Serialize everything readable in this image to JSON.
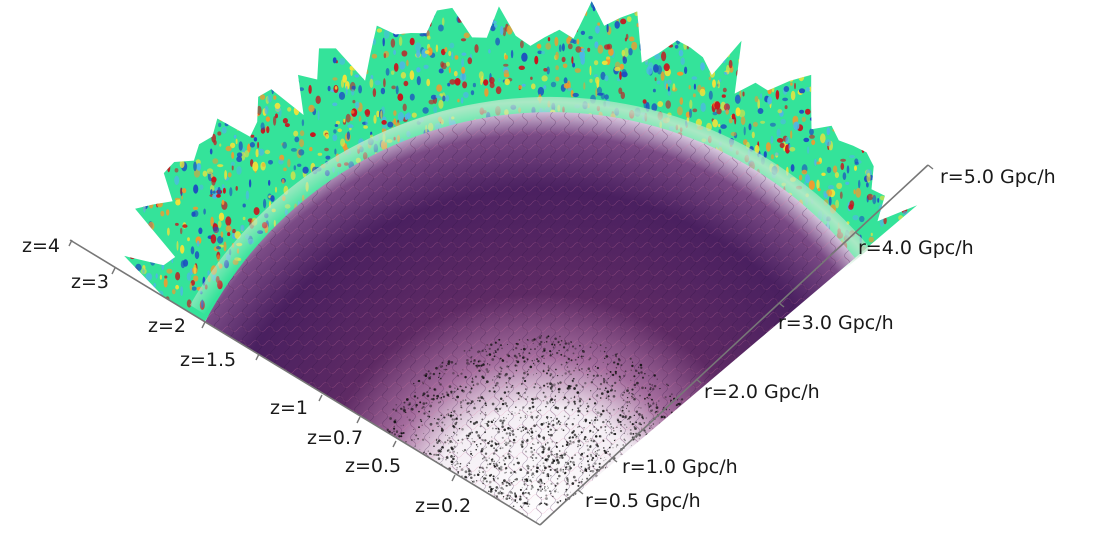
{
  "redshift_axis": {
    "labels": [
      "z=4",
      "z=3",
      "z=2",
      "z=1.5",
      "z=1",
      "z=0.7",
      "z=0.5",
      "z=0.2"
    ]
  },
  "distance_axis": {
    "labels": [
      "r=5.0 Gpc/h",
      "r=4.0 Gpc/h",
      "r=3.0 Gpc/h",
      "r=2.0 Gpc/h",
      "r=1.0 Gpc/h",
      "r=0.5 Gpc/h"
    ]
  },
  "colors": {
    "background": "#ffffff",
    "axis": "#777777",
    "label": "#1a1a1a",
    "matter_dark": "#2a1340",
    "matter_mid": "#6b2f6e",
    "matter_bright": "#d0709a",
    "halo_points": "#111111",
    "map_base": "#34e39a",
    "map_hot": "#c9141e",
    "map_warm": "#f1e23a",
    "map_cold": "#1d4fc1"
  }
}
